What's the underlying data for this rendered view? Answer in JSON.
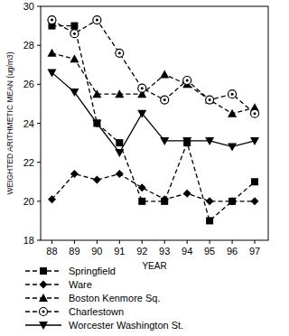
{
  "chart_data": {
    "type": "line",
    "x_label": "YEAR",
    "y_label": "WEIGHTED ARITHMETIC MEAN (ug/m3)",
    "x": [
      88,
      89,
      90,
      91,
      92,
      93,
      94,
      95,
      96,
      97
    ],
    "xlim": [
      87.5,
      97.6
    ],
    "xticks": [
      88,
      89,
      90,
      91,
      92,
      93,
      94,
      95,
      96,
      97
    ],
    "ylim": [
      18,
      30
    ],
    "yticks": [
      18,
      20,
      22,
      24,
      26,
      28,
      30
    ],
    "legend": "bottom",
    "grid": false,
    "series": [
      {
        "name": "Springfield",
        "color": "#000000",
        "marker": "square",
        "line_style": "dashed",
        "values": [
          29,
          29,
          24,
          23,
          20,
          20,
          23,
          19,
          20,
          21
        ]
      },
      {
        "name": "Ware",
        "color": "#000000",
        "marker": "diamond",
        "line_style": "dashed",
        "values": [
          20.1,
          21.4,
          21.1,
          21.4,
          20.7,
          20.1,
          20.4,
          20,
          20,
          20
        ]
      },
      {
        "name": "Boston Kenmore Sq.",
        "color": "#000000",
        "marker": "triangle",
        "line_style": "dashed",
        "values": [
          27.6,
          27.3,
          25.5,
          25.5,
          25.5,
          26.5,
          26,
          25.2,
          24.5,
          24.8
        ]
      },
      {
        "name": "Charlestown",
        "color": "#000000",
        "marker": "circle",
        "line_style": "dashed",
        "values": [
          29.3,
          28.6,
          29.3,
          27.6,
          25.8,
          25.2,
          26.2,
          25.2,
          25.5,
          24.5
        ]
      },
      {
        "name": "Worcester Washington St.",
        "color": "#000000",
        "marker": "triangle_down",
        "line_style": "solid",
        "values": [
          26.6,
          25.6,
          24,
          22.5,
          24.5,
          23.1,
          23.1,
          23.1,
          22.8,
          23.1
        ]
      }
    ]
  }
}
